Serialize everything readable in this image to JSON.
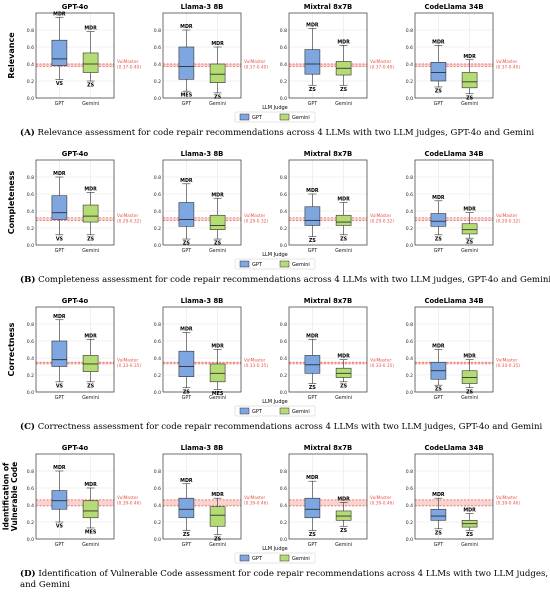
{
  "colors": {
    "gpt": "#7ea6e0",
    "gemini": "#b5dc74",
    "vulmaster": "#e8534a",
    "vulmaster_band": "#f6c9c6",
    "grid": "#e6e6e6",
    "box_edge": "#333333"
  },
  "legend": {
    "title": "LLM Judge",
    "items": [
      {
        "label": "GPT",
        "color": "#7ea6e0"
      },
      {
        "label": "Gemini",
        "color": "#b5dc74"
      }
    ]
  },
  "panels": [
    {
      "ylabel": "Relevance",
      "caption_letter": "(A)",
      "caption_text": " Relevance assessment for code repair recommendations across 4 LLMs with two LLM judges, GPT-4o and Gemini",
      "caption_line2": "",
      "yticks": [
        "0.0",
        "0.2",
        "0.4",
        "0.6",
        "0.8"
      ]
    },
    {
      "ylabel": "Completeness",
      "caption_letter": "(B)",
      "caption_text": " Completeness assessment for code repair recommendations across 4 LLMs with two LLM judges, GPT-4o and Gemini",
      "caption_line2": "",
      "yticks": [
        "0.0",
        "0.2",
        "0.4",
        "0.6",
        "0.8"
      ]
    },
    {
      "ylabel": "Correctness",
      "caption_letter": "(C)",
      "caption_text": " Correctness assessment for code repair recommendations across 4 LLMs with two LLM judges, GPT-4o and Gemini",
      "caption_line2": "",
      "yticks": [
        "0.0",
        "0.2",
        "0.4",
        "0.6",
        "0.8"
      ]
    },
    {
      "ylabel": "Identification of Vulnerable Code",
      "ylabel_lines": [
        "Identification",
        "of",
        "Vulnerable",
        "Code"
      ],
      "caption_letter": "(D)",
      "caption_text": " Identification of Vulnerable Code assessment for code repair recommendations across 4 LLMs with two LLM judges, GPT-4o",
      "caption_line2": "and Gemini",
      "yticks": [
        "0.0",
        "0.2",
        "0.4",
        "0.6",
        "0.8"
      ]
    }
  ],
  "chart_data": [
    {
      "type": "box",
      "ylabel": "Relevance",
      "ylim": [
        0,
        1.0
      ],
      "subplots": [
        {
          "title": "GPT-4o",
          "categories": [
            "GPT",
            "Gemini"
          ],
          "boxes": [
            {
              "name": "GPT",
              "whislo": 0.22,
              "q1": 0.38,
              "med": 0.46,
              "q3": 0.68,
              "whishi": 0.95,
              "top_label": "MDR",
              "bottom_label": "VS"
            },
            {
              "name": "Gemini",
              "whislo": 0.2,
              "q1": 0.3,
              "med": 0.4,
              "q3": 0.53,
              "whishi": 0.78,
              "top_label": "MDR",
              "bottom_label": "ZS"
            }
          ],
          "vulmaster": {
            "label": "VulMaster",
            "range_text": "(0.37-0.40)",
            "low": 0.37,
            "high": 0.4
          }
        },
        {
          "title": "Llama-3 8B",
          "categories": [
            "GPT",
            "Gemini"
          ],
          "boxes": [
            {
              "name": "GPT",
              "whislo": 0.08,
              "q1": 0.22,
              "med": 0.37,
              "q3": 0.6,
              "whishi": 0.8,
              "top_label": "MDR",
              "bottom_label": "MES"
            },
            {
              "name": "Gemini",
              "whislo": 0.06,
              "q1": 0.18,
              "med": 0.28,
              "q3": 0.4,
              "whishi": 0.6,
              "top_label": "MDR",
              "bottom_label": "ZS"
            }
          ],
          "vulmaster": {
            "label": "VulMaster",
            "range_text": "(0.37-0.40)",
            "low": 0.37,
            "high": 0.4
          }
        },
        {
          "title": "Mixtral 8x7B",
          "categories": [
            "GPT",
            "Gemini"
          ],
          "boxes": [
            {
              "name": "GPT",
              "whislo": 0.15,
              "q1": 0.28,
              "med": 0.4,
              "q3": 0.57,
              "whishi": 0.82,
              "top_label": "MDR",
              "bottom_label": "ZS"
            },
            {
              "name": "Gemini",
              "whislo": 0.15,
              "q1": 0.27,
              "med": 0.35,
              "q3": 0.43,
              "whishi": 0.62,
              "top_label": "MDR",
              "bottom_label": "ZS"
            }
          ],
          "vulmaster": {
            "label": "VulMaster",
            "range_text": "(0.37-0.40)",
            "low": 0.37,
            "high": 0.4
          }
        },
        {
          "title": "CodeLlama 34B",
          "categories": [
            "GPT",
            "Gemini"
          ],
          "boxes": [
            {
              "name": "GPT",
              "whislo": 0.13,
              "q1": 0.2,
              "med": 0.3,
              "q3": 0.42,
              "whishi": 0.62,
              "top_label": "MDR",
              "bottom_label": "ZS"
            },
            {
              "name": "Gemini",
              "whislo": 0.05,
              "q1": 0.12,
              "med": 0.19,
              "q3": 0.3,
              "whishi": 0.45,
              "top_label": "MDR",
              "bottom_label": "ZS"
            }
          ],
          "vulmaster": {
            "label": "VulMaster",
            "range_text": "(0.37-0.40)",
            "low": 0.37,
            "high": 0.4
          }
        }
      ]
    },
    {
      "type": "box",
      "ylabel": "Completeness",
      "ylim": [
        0,
        1.0
      ],
      "subplots": [
        {
          "title": "GPT-4o",
          "categories": [
            "GPT",
            "Gemini"
          ],
          "boxes": [
            {
              "name": "GPT",
              "whislo": 0.12,
              "q1": 0.3,
              "med": 0.38,
              "q3": 0.58,
              "whishi": 0.8,
              "top_label": "MDR",
              "bottom_label": "VS"
            },
            {
              "name": "Gemini",
              "whislo": 0.12,
              "q1": 0.27,
              "med": 0.34,
              "q3": 0.47,
              "whishi": 0.62,
              "top_label": "MDR",
              "bottom_label": "ZS"
            }
          ],
          "vulmaster": {
            "label": "VulMaster",
            "range_text": "(0.29-0.32)",
            "low": 0.29,
            "high": 0.32
          }
        },
        {
          "title": "Llama-3 8B",
          "categories": [
            "GPT",
            "Gemini"
          ],
          "boxes": [
            {
              "name": "GPT",
              "whislo": 0.07,
              "q1": 0.22,
              "med": 0.3,
              "q3": 0.5,
              "whishi": 0.72,
              "top_label": "MDR",
              "bottom_label": "ZS"
            },
            {
              "name": "Gemini",
              "whislo": 0.07,
              "q1": 0.18,
              "med": 0.23,
              "q3": 0.35,
              "whishi": 0.55,
              "top_label": "MDR",
              "bottom_label": "ZS"
            }
          ],
          "vulmaster": {
            "label": "VulMaster",
            "range_text": "(0.29-0.32)",
            "low": 0.29,
            "high": 0.32
          }
        },
        {
          "title": "Mixtral 8x7B",
          "categories": [
            "GPT",
            "Gemini"
          ],
          "boxes": [
            {
              "name": "GPT",
              "whislo": 0.1,
              "q1": 0.23,
              "med": 0.29,
              "q3": 0.45,
              "whishi": 0.6,
              "top_label": "MDR",
              "bottom_label": "ZS"
            },
            {
              "name": "Gemini",
              "whislo": 0.12,
              "q1": 0.23,
              "med": 0.27,
              "q3": 0.35,
              "whishi": 0.5,
              "top_label": "MDR",
              "bottom_label": "ZS"
            }
          ],
          "vulmaster": {
            "label": "VulMaster",
            "range_text": "(0.29-0.32)",
            "low": 0.29,
            "high": 0.32
          }
        },
        {
          "title": "CodeLlama 34B",
          "categories": [
            "GPT",
            "Gemini"
          ],
          "boxes": [
            {
              "name": "GPT",
              "whislo": 0.12,
              "q1": 0.22,
              "med": 0.28,
              "q3": 0.37,
              "whishi": 0.52,
              "top_label": "MDR",
              "bottom_label": "ZS"
            },
            {
              "name": "Gemini",
              "whislo": 0.08,
              "q1": 0.13,
              "med": 0.18,
              "q3": 0.25,
              "whishi": 0.38,
              "top_label": "MDR",
              "bottom_label": "ZS"
            }
          ],
          "vulmaster": {
            "label": "VulMaster",
            "range_text": "(0.29-0.32)",
            "low": 0.29,
            "high": 0.32
          }
        }
      ]
    },
    {
      "type": "box",
      "ylabel": "Correctness",
      "ylim": [
        0,
        1.0
      ],
      "subplots": [
        {
          "title": "GPT-4o",
          "categories": [
            "GPT",
            "Gemini"
          ],
          "boxes": [
            {
              "name": "GPT",
              "whislo": 0.12,
              "q1": 0.3,
              "med": 0.38,
              "q3": 0.6,
              "whishi": 0.85,
              "top_label": "MDR",
              "bottom_label": "VS"
            },
            {
              "name": "Gemini",
              "whislo": 0.12,
              "q1": 0.24,
              "med": 0.33,
              "q3": 0.43,
              "whishi": 0.62,
              "top_label": "MDR",
              "bottom_label": "ZS"
            }
          ],
          "vulmaster": {
            "label": "VulMaster",
            "range_text": "(0.33-0.35)",
            "low": 0.33,
            "high": 0.35
          }
        },
        {
          "title": "Llama-3 8B",
          "categories": [
            "GPT",
            "Gemini"
          ],
          "boxes": [
            {
              "name": "GPT",
              "whislo": 0.05,
              "q1": 0.18,
              "med": 0.3,
              "q3": 0.48,
              "whishi": 0.7,
              "top_label": "MDR",
              "bottom_label": "ZS"
            },
            {
              "name": "Gemini",
              "whislo": 0.03,
              "q1": 0.12,
              "med": 0.22,
              "q3": 0.33,
              "whishi": 0.5,
              "top_label": "MDR",
              "bottom_label": "MES"
            }
          ],
          "vulmaster": {
            "label": "VulMaster",
            "range_text": "(0.33-0.35)",
            "low": 0.33,
            "high": 0.35
          }
        },
        {
          "title": "Mixtral 8x7B",
          "categories": [
            "GPT",
            "Gemini"
          ],
          "boxes": [
            {
              "name": "GPT",
              "whislo": 0.1,
              "q1": 0.22,
              "med": 0.32,
              "q3": 0.43,
              "whishi": 0.62,
              "top_label": "MDR",
              "bottom_label": "ZS"
            },
            {
              "name": "Gemini",
              "whislo": 0.12,
              "q1": 0.17,
              "med": 0.22,
              "q3": 0.28,
              "whishi": 0.38,
              "top_label": "MDR",
              "bottom_label": "ZS"
            }
          ],
          "vulmaster": {
            "label": "VulMaster",
            "range_text": "(0.33-0.35)",
            "low": 0.33,
            "high": 0.35
          }
        },
        {
          "title": "CodeLlama 34B",
          "categories": [
            "GPT",
            "Gemini"
          ],
          "boxes": [
            {
              "name": "GPT",
              "whislo": 0.08,
              "q1": 0.15,
              "med": 0.25,
              "q3": 0.35,
              "whishi": 0.5,
              "top_label": "MDR",
              "bottom_label": "ZS"
            },
            {
              "name": "Gemini",
              "whislo": 0.05,
              "q1": 0.1,
              "med": 0.17,
              "q3": 0.25,
              "whishi": 0.38,
              "top_label": "MDR",
              "bottom_label": "ZS"
            }
          ],
          "vulmaster": {
            "label": "VulMaster",
            "range_text": "(0.33-0.35)",
            "low": 0.33,
            "high": 0.35
          }
        }
      ]
    },
    {
      "type": "box",
      "ylabel": "Identification of Vulnerable Code",
      "ylim": [
        0,
        1.0
      ],
      "subplots": [
        {
          "title": "GPT-4o",
          "categories": [
            "GPT",
            "Gemini"
          ],
          "boxes": [
            {
              "name": "GPT",
              "whislo": 0.2,
              "q1": 0.35,
              "med": 0.45,
              "q3": 0.57,
              "whishi": 0.8,
              "top_label": "MDR",
              "bottom_label": "VS"
            },
            {
              "name": "Gemini",
              "whislo": 0.13,
              "q1": 0.25,
              "med": 0.33,
              "q3": 0.45,
              "whishi": 0.6,
              "top_label": "MDR",
              "bottom_label": "MES"
            }
          ],
          "vulmaster": {
            "label": "VulMaster",
            "range_text": "(0.39-0.46)",
            "low": 0.39,
            "high": 0.46
          }
        },
        {
          "title": "Llama-3 8B",
          "categories": [
            "GPT",
            "Gemini"
          ],
          "boxes": [
            {
              "name": "GPT",
              "whislo": 0.1,
              "q1": 0.25,
              "med": 0.35,
              "q3": 0.48,
              "whishi": 0.65,
              "top_label": "MDR",
              "bottom_label": "ZS"
            },
            {
              "name": "Gemini",
              "whislo": 0.05,
              "q1": 0.15,
              "med": 0.28,
              "q3": 0.38,
              "whishi": 0.48,
              "top_label": "MDR",
              "bottom_label": "ZS"
            }
          ],
          "vulmaster": {
            "label": "VulMaster",
            "range_text": "(0.39-0.46)",
            "low": 0.39,
            "high": 0.46
          }
        },
        {
          "title": "Mixtral 8x7B",
          "categories": [
            "GPT",
            "Gemini"
          ],
          "boxes": [
            {
              "name": "GPT",
              "whislo": 0.1,
              "q1": 0.25,
              "med": 0.35,
              "q3": 0.48,
              "whishi": 0.68,
              "top_label": "MDR",
              "bottom_label": "ZS"
            },
            {
              "name": "Gemini",
              "whislo": 0.15,
              "q1": 0.22,
              "med": 0.27,
              "q3": 0.33,
              "whishi": 0.43,
              "top_label": "MDR",
              "bottom_label": "ZS"
            }
          ],
          "vulmaster": {
            "label": "VulMaster",
            "range_text": "(0.39-0.46)",
            "low": 0.39,
            "high": 0.46
          }
        },
        {
          "title": "CodeLlama 34B",
          "categories": [
            "GPT",
            "Gemini"
          ],
          "boxes": [
            {
              "name": "GPT",
              "whislo": 0.12,
              "q1": 0.22,
              "med": 0.27,
              "q3": 0.35,
              "whishi": 0.48,
              "top_label": "MDR",
              "bottom_label": "ZS"
            },
            {
              "name": "Gemini",
              "whislo": 0.1,
              "q1": 0.14,
              "med": 0.18,
              "q3": 0.22,
              "whishi": 0.3,
              "top_label": "MDR",
              "bottom_label": "ZS"
            }
          ],
          "vulmaster": {
            "label": "VulMaster",
            "range_text": "(0.39-0.46)",
            "low": 0.39,
            "high": 0.46
          }
        }
      ]
    }
  ]
}
